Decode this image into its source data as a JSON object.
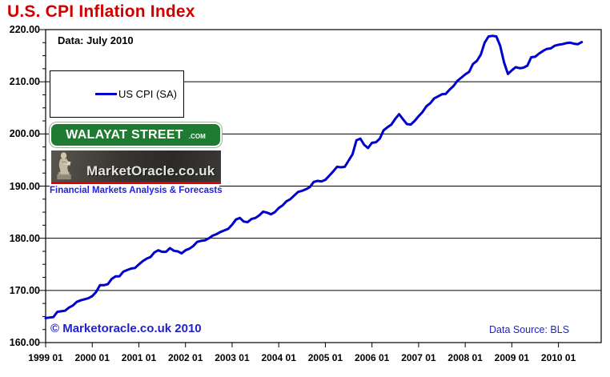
{
  "title": "U.S. CPI Inflation Index",
  "annotation": "Data: July 2010",
  "legend": {
    "label": "US CPI (SA)"
  },
  "logos": {
    "walayat": {
      "text": "WALAYAT STREET",
      "suffix": ".COM"
    },
    "marketoracle": {
      "text": "MarketOracle.co.uk",
      "tagline": "Financial Markets Analysis & Forecasts",
      "statue_icon": "seated-scholar-statue"
    }
  },
  "footer": {
    "copyright": "© Marketoracle.co.uk  2010",
    "source": "Data Source: BLS"
  },
  "colors": {
    "title_red": "#CC0000",
    "series_blue": "#0000CC",
    "blue_text": "#2222CC",
    "sign_green": "#1E7B31",
    "stripe_red": "#E00000",
    "grid_black": "#000000"
  },
  "chart_data": {
    "type": "line",
    "title": "U.S. CPI Inflation Index",
    "xlabel": "",
    "ylabel": "",
    "ylim": [
      160,
      220
    ],
    "y_major_step": 10,
    "y_minor_step": 2.5,
    "grid": "horizontal-major-on",
    "legend_position": "inside-top-left",
    "x_axis_span_months": 144,
    "x_axis_start": "1999-01",
    "x_axis_end": "2010-12",
    "x_tick_every_months": 12,
    "x_tick_labels": [
      "1999 01",
      "2000 01",
      "2001 01",
      "2002 01",
      "2003 01",
      "2004 01",
      "2005 01",
      "2006 01",
      "2007 01",
      "2008 01",
      "2009 01",
      "2010 01"
    ],
    "y_tick_labels": [
      "220.00",
      "210.00",
      "200.00",
      "190.00",
      "180.00",
      "170.00",
      "160.00"
    ],
    "series": [
      {
        "name": "US CPI (SA)",
        "color": "#0000CC",
        "first_month": "1999-01",
        "last_month": "2010-07",
        "values": [
          164.7,
          164.8,
          164.9,
          165.9,
          166.0,
          166.1,
          166.7,
          167.1,
          167.8,
          168.1,
          168.3,
          168.5,
          168.9,
          169.7,
          171.0,
          171.0,
          171.2,
          172.2,
          172.7,
          172.7,
          173.6,
          173.9,
          174.2,
          174.3,
          175.0,
          175.6,
          176.1,
          176.4,
          177.3,
          177.7,
          177.4,
          177.4,
          178.1,
          177.6,
          177.5,
          177.1,
          177.7,
          178.0,
          178.5,
          179.3,
          179.5,
          179.6,
          180.0,
          180.5,
          180.8,
          181.2,
          181.5,
          181.8,
          182.6,
          183.6,
          183.9,
          183.2,
          183.1,
          183.7,
          183.9,
          184.4,
          185.1,
          184.9,
          184.6,
          185.0,
          185.8,
          186.3,
          187.1,
          187.5,
          188.2,
          188.9,
          189.1,
          189.4,
          189.8,
          190.8,
          191.0,
          190.9,
          191.2,
          192.0,
          192.8,
          193.7,
          193.6,
          193.7,
          194.9,
          196.1,
          198.8,
          199.1,
          197.9,
          197.3,
          198.3,
          198.4,
          199.1,
          200.7,
          201.3,
          201.8,
          202.9,
          203.8,
          202.8,
          201.9,
          201.8,
          202.5,
          203.4,
          204.2,
          205.3,
          205.9,
          206.8,
          207.2,
          207.6,
          207.7,
          208.5,
          209.2,
          210.2,
          210.8,
          211.4,
          211.9,
          213.4,
          214.0,
          215.2,
          217.5,
          218.7,
          218.8,
          218.7,
          216.9,
          213.7,
          211.5,
          212.2,
          212.8,
          212.6,
          212.7,
          213.1,
          214.7,
          214.8,
          215.4,
          215.9,
          216.3,
          216.4,
          216.9,
          217.1,
          217.2,
          217.4,
          217.5,
          217.3,
          217.2,
          217.6
        ]
      }
    ]
  }
}
